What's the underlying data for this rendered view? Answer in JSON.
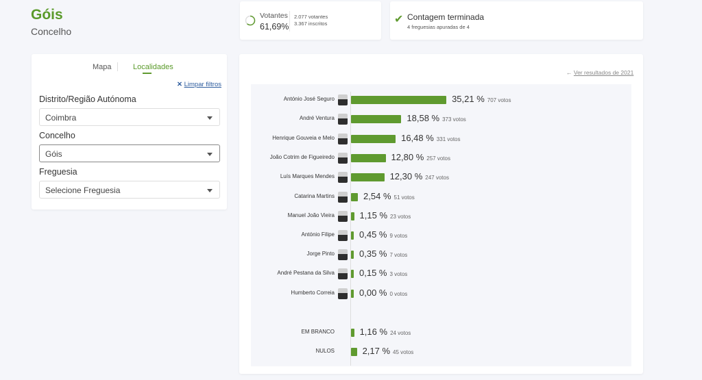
{
  "header": {
    "title": "Góis",
    "subtitle": "Concelho"
  },
  "turnout": {
    "label": "Votantes",
    "percent": "61,69%",
    "voters": "2.077 votantes",
    "registered": "3.367 inscritos",
    "fraction": 0.6169
  },
  "count": {
    "title": "Contagem terminada",
    "detail": "4 freguesias apuradas de 4"
  },
  "filters": {
    "tabs": [
      "Mapa",
      "Localidades"
    ],
    "active_tab": 1,
    "clear": "Limpar filtros",
    "district_label": "Distrito/Região Autónoma",
    "district_value": "Coimbra",
    "council_label": "Concelho",
    "council_value": "Góis",
    "parish_label": "Freguesia",
    "parish_value": "Selecione Freguesia"
  },
  "results": {
    "link": "Ver resultados de 2021"
  },
  "accent": "#5f9a2f",
  "chart_data": {
    "type": "bar",
    "orientation": "horizontal",
    "categories": [
      "António José Seguro",
      "André Ventura",
      "Henrique Gouveia e Melo",
      "João Cotrim de Figueiredo",
      "Luís Marques Mendes",
      "Catarina Martins",
      "Manuel João Vieira",
      "António Filipe",
      "Jorge Pinto",
      "André Pestana da Silva",
      "Humberto Correia",
      "EM BRANCO",
      "NULOS"
    ],
    "values": [
      35.21,
      18.58,
      16.48,
      12.8,
      12.3,
      2.54,
      1.15,
      0.45,
      0.35,
      0.15,
      0.0,
      1.16,
      2.17
    ],
    "labels": [
      "35,21 %",
      "18,58 %",
      "16,48 %",
      "12,80 %",
      "12,30 %",
      "2,54 %",
      "1,15 %",
      "0,45 %",
      "0,35 %",
      "0,15 %",
      "0,00 %",
      "1,16 %",
      "2,17 %"
    ],
    "votes": [
      "707 votos",
      "373 votos",
      "331 votos",
      "257 votos",
      "247 votos",
      "51 votos",
      "23 votos",
      "9 votos",
      "7 votos",
      "3 votos",
      "0 votos",
      "24 votos",
      "45 votos"
    ]
  }
}
